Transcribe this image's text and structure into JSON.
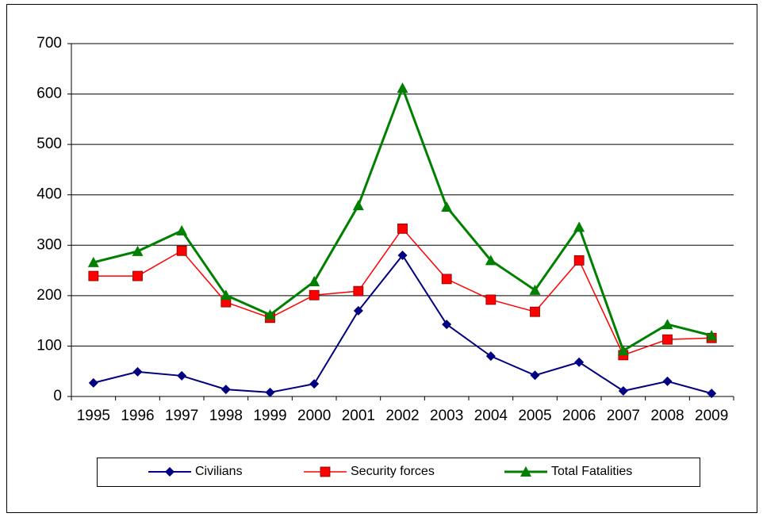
{
  "chart_data": {
    "type": "line",
    "categories": [
      "1995",
      "1996",
      "1997",
      "1998",
      "1999",
      "2000",
      "2001",
      "2002",
      "2003",
      "2004",
      "2005",
      "2006",
      "2007",
      "2008",
      "2009"
    ],
    "series": [
      {
        "name": "Civilians",
        "color": "#000080",
        "marker": "diamond",
        "values": [
          27,
          49,
          41,
          14,
          8,
          25,
          170,
          280,
          143,
          80,
          42,
          68,
          11,
          30,
          6
        ]
      },
      {
        "name": "Security forces",
        "color": "#ff0000",
        "marker": "square",
        "values": [
          239,
          239,
          289,
          187,
          156,
          201,
          209,
          333,
          233,
          192,
          168,
          270,
          82,
          113,
          116
        ]
      },
      {
        "name": "Total Fatalities",
        "color": "#008000",
        "marker": "triangle",
        "values": [
          266,
          288,
          329,
          201,
          162,
          228,
          379,
          612,
          376,
          270,
          211,
          336,
          91,
          143,
          121
        ]
      }
    ],
    "ylim": [
      0,
      700
    ],
    "yticks": [
      0,
      100,
      200,
      300,
      400,
      500,
      600,
      700
    ],
    "grid": true,
    "legend": "bottom"
  }
}
